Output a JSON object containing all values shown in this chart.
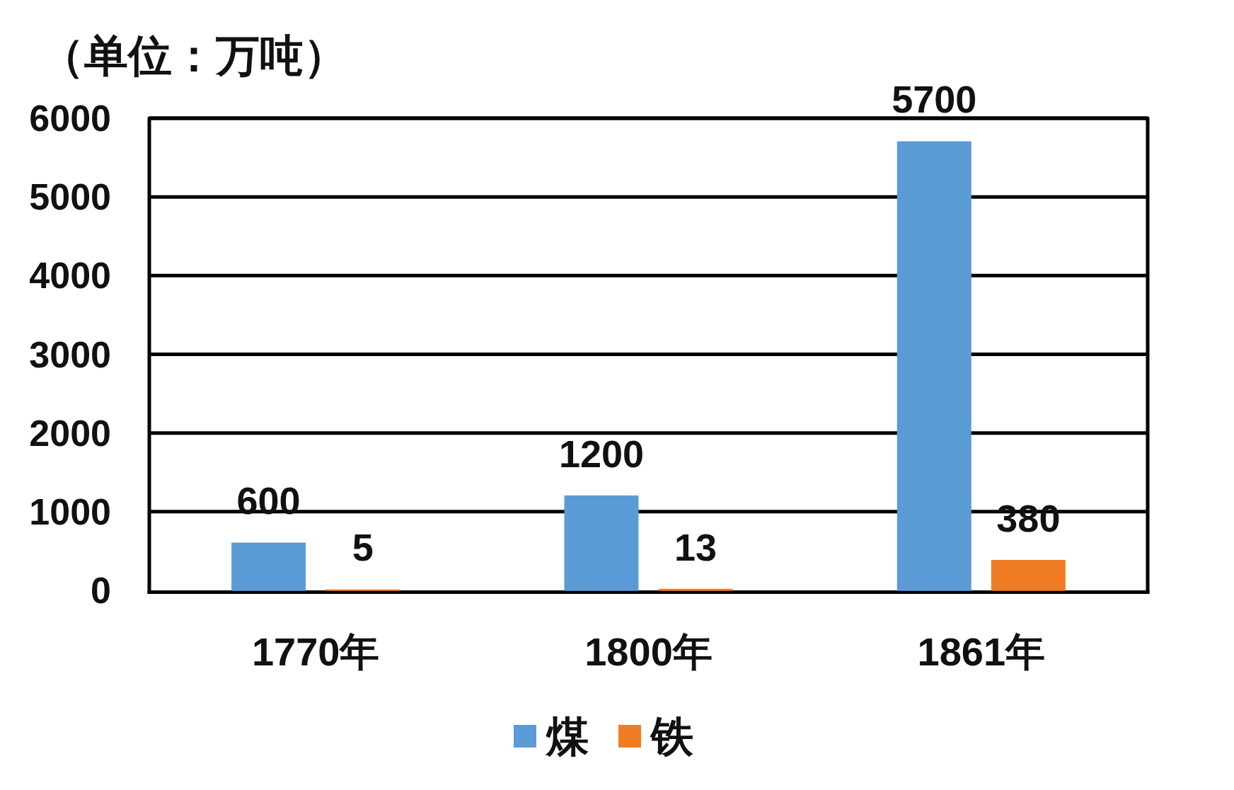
{
  "chart_data": {
    "type": "bar",
    "ylabel": "（单位：万吨）",
    "categories": [
      "1770年",
      "1800年",
      "1861年"
    ],
    "series": [
      {
        "name": "煤",
        "color": "#5b9bd5",
        "values": [
          600,
          1200,
          5700
        ]
      },
      {
        "name": "铁",
        "color": "#f07c24",
        "values": [
          5,
          13,
          380
        ]
      }
    ],
    "ylim": [
      0,
      6000
    ],
    "yticks": [
      0,
      1000,
      2000,
      3000,
      4000,
      5000,
      6000
    ],
    "grid": "y",
    "data_labels": true,
    "legend": "bottom"
  }
}
